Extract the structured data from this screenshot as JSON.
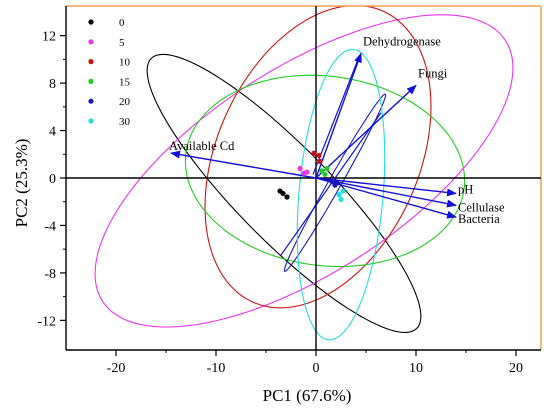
{
  "chart_data": {
    "type": "scatter",
    "title": "",
    "xlabel": "PC1 (67.6%)",
    "ylabel": "PC2 (25.3%)",
    "xlim": [
      -25,
      22.5
    ],
    "ylim": [
      -14.5,
      14.5
    ],
    "x_ticks": [
      -20,
      -10,
      0,
      10,
      20
    ],
    "y_ticks": [
      -12,
      -8,
      -4,
      0,
      4,
      8,
      12
    ],
    "grid": false,
    "legend_position": "top-left",
    "origin_lines": true,
    "colors": {
      "frame": "#f0a050",
      "axis": "#000000",
      "vector": "#1010d8"
    },
    "series": [
      {
        "name": "0",
        "color": "#000000",
        "points": [
          [
            -3.6,
            -1.1
          ],
          [
            -3.3,
            -1.3
          ],
          [
            -2.9,
            -1.6
          ]
        ]
      },
      {
        "name": "5",
        "color": "#ee33ee",
        "points": [
          [
            -1.6,
            0.8
          ],
          [
            -1.2,
            0.4
          ],
          [
            -0.9,
            0.5
          ]
        ]
      },
      {
        "name": "10",
        "color": "#cc1111",
        "points": [
          [
            -0.2,
            2.1
          ],
          [
            0.3,
            1.9
          ],
          [
            0.4,
            1.4
          ]
        ]
      },
      {
        "name": "15",
        "color": "#22cc22",
        "points": [
          [
            0.6,
            0.6
          ],
          [
            0.9,
            0.3
          ],
          [
            1.1,
            0.8
          ]
        ]
      },
      {
        "name": "20",
        "color": "#1a1ab8",
        "points": [
          [
            1.6,
            -0.3
          ],
          [
            1.9,
            -0.6
          ],
          [
            2.1,
            -0.4
          ]
        ]
      },
      {
        "name": "30",
        "color": "#22dddd",
        "points": [
          [
            2.3,
            -1.4
          ],
          [
            2.5,
            -1.8
          ],
          [
            2.7,
            -1.1
          ]
        ]
      }
    ],
    "ellipses": [
      {
        "series": "0",
        "cx": -3.2,
        "cy": -1.3,
        "rx": 17.5,
        "ry": 4.3,
        "angle": -40
      },
      {
        "series": "5",
        "cx": -1.2,
        "cy": 0.6,
        "rx": 23.0,
        "ry": 9.0,
        "angle": 27
      },
      {
        "series": "10",
        "cx": 0.2,
        "cy": 1.8,
        "rx": 14.0,
        "ry": 9.7,
        "angle": 55
      },
      {
        "series": "15",
        "cx": 0.9,
        "cy": 0.6,
        "rx": 14.0,
        "ry": 8.0,
        "angle": -5
      },
      {
        "series": "20",
        "cx": 1.9,
        "cy": -0.4,
        "rx": 9.0,
        "ry": 0.6,
        "angle": 56
      },
      {
        "series": "30",
        "cx": 2.5,
        "cy": -1.4,
        "rx": 12.3,
        "ry": 4.2,
        "angle": 84
      }
    ],
    "vectors": [
      {
        "name": "Dehydrogenase",
        "x": 4.5,
        "y": 10.5
      },
      {
        "name": "Fungi",
        "x": 10.0,
        "y": 7.8
      },
      {
        "name": "Available Cd",
        "x": -14.5,
        "y": 2.1
      },
      {
        "name": "pH",
        "x": 14.0,
        "y": -1.3
      },
      {
        "name": "Cellulase",
        "x": 14.0,
        "y": -2.3
      },
      {
        "name": "Bacteria",
        "x": 14.0,
        "y": -3.3
      }
    ],
    "vector_inner_lines": [
      {
        "x1": 6.5,
        "y1": 5.5,
        "x2": -3.5,
        "y2": -6.5
      },
      {
        "x1": 4.3,
        "y1": 10.2,
        "x2": -0.3,
        "y2": 0.3
      }
    ]
  }
}
